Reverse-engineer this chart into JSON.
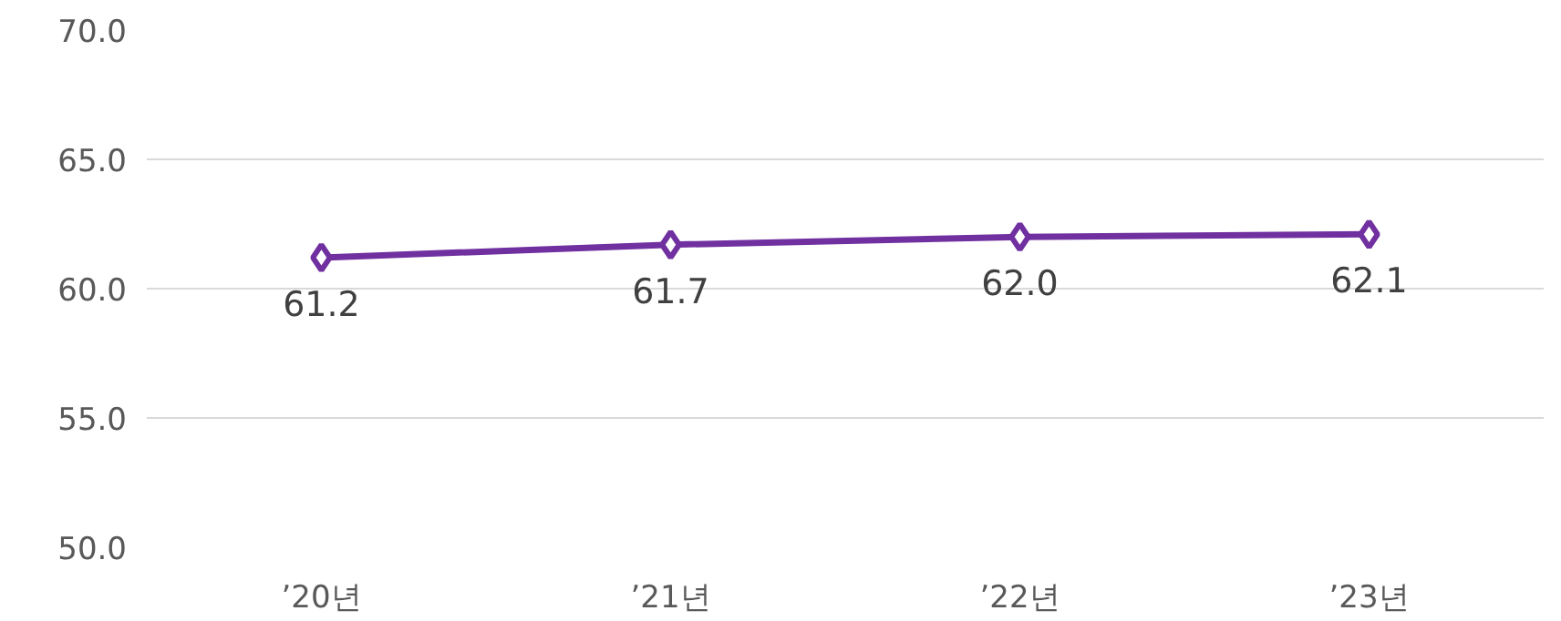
{
  "chart_data": {
    "type": "line",
    "categories": [
      "’20년",
      "’21년",
      "’22년",
      "’23년"
    ],
    "series": [
      {
        "color": "#7030a0",
        "values": [
          61.2,
          61.7,
          62.0,
          62.1
        ],
        "value_labels": [
          "61.2",
          "61.7",
          "62.0",
          "62.1"
        ]
      }
    ],
    "ylim": [
      50,
      70
    ],
    "yticks": [
      {
        "value": 50,
        "label": "50.0"
      },
      {
        "value": 55,
        "label": "55.0"
      },
      {
        "value": 60,
        "label": "60.0"
      },
      {
        "value": 65,
        "label": "65.0"
      },
      {
        "value": 70,
        "label": "70.0"
      }
    ],
    "grid": "y",
    "marker": "diamond",
    "line_style": "solid"
  }
}
